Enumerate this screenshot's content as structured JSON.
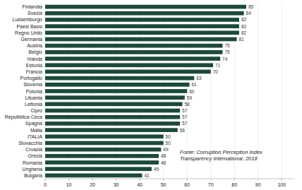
{
  "chart_data": {
    "type": "bar",
    "orientation": "horizontal",
    "categories": [
      "Bulgaria",
      "Ungheria",
      "Romania",
      "Grecia",
      "Croazia",
      "Slovacchia",
      "ITALIA",
      "Malta",
      "Spagna",
      "Repubblica Ceca",
      "Cipro",
      "Lettonia",
      "Lituania",
      "Polonia",
      "Slovenia",
      "Portogallo",
      "Francia",
      "Estonia",
      "Irlanda",
      "Belgio",
      "Austria",
      "Germania",
      "Regno Unito",
      "Paesi Bassi",
      "Lussemburgo",
      "Svezia",
      "Finlandia"
    ],
    "values": [
      41,
      45,
      48,
      48,
      49,
      50,
      50,
      56,
      57,
      57,
      57,
      58,
      59,
      60,
      61,
      63,
      70,
      71,
      74,
      75,
      75,
      81,
      82,
      82,
      82,
      84,
      85
    ],
    "color": "#1c4a3a",
    "xlim": [
      0,
      105
    ],
    "xticks": [
      0,
      10,
      20,
      30,
      40,
      50,
      60,
      70,
      80,
      90,
      100
    ],
    "grid": true,
    "data_labels": true,
    "annotations": [
      "Fonte: Corruption Perception Index\nTransparency International, 2018"
    ]
  }
}
